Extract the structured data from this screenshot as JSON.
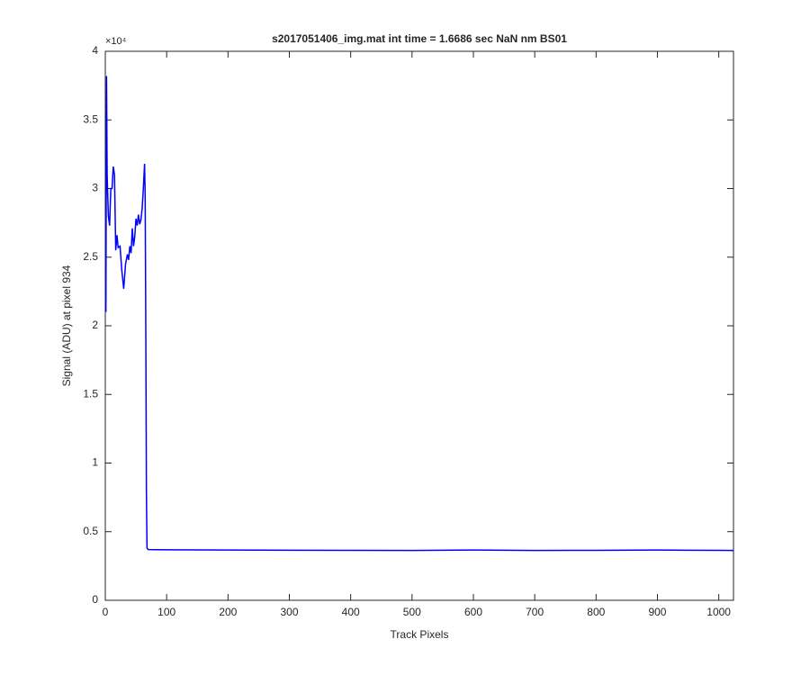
{
  "chart_data": {
    "type": "line",
    "title": "s2017051406_img.mat int time = 1.6686 sec  NaN nm BS01",
    "x_label": "Track Pixels",
    "y_label": "Signal (ADU) at pixel 934",
    "y_exponent_label": "×10⁴",
    "x": [
      1,
      2,
      3,
      5,
      7,
      9,
      11,
      13,
      15,
      17,
      19,
      21,
      24,
      27,
      30,
      33,
      36,
      38,
      40,
      42,
      44,
      46,
      48,
      50,
      52,
      54,
      56,
      58,
      60,
      62,
      64,
      65,
      66,
      67,
      68,
      70,
      100,
      200,
      300,
      400,
      500,
      600,
      700,
      800,
      900,
      1000,
      1024
    ],
    "series": [
      {
        "color": "#0000ff",
        "values": [
          21000,
          38200,
          31000,
          28000,
          27300,
          30000,
          30000,
          31600,
          31000,
          25500,
          26600,
          25700,
          25800,
          24000,
          22700,
          24500,
          25200,
          24800,
          25800,
          25300,
          27100,
          25800,
          26500,
          27800,
          27300,
          28100,
          27400,
          27700,
          28500,
          30000,
          31800,
          29500,
          20000,
          8000,
          3800,
          3700,
          3680,
          3660,
          3650,
          3640,
          3630,
          3660,
          3630,
          3640,
          3660,
          3640,
          3630
        ]
      }
    ],
    "xlim": [
      0,
      1024
    ],
    "ylim": [
      0,
      40000
    ],
    "xticks": [
      0,
      100,
      200,
      300,
      400,
      500,
      600,
      700,
      800,
      900,
      1000
    ],
    "yticks": [
      0,
      {
        "value": 5000,
        "label": "0.5"
      },
      {
        "value": 10000,
        "label": "1"
      },
      {
        "value": 15000,
        "label": "1.5"
      },
      {
        "value": 20000,
        "label": "2"
      },
      {
        "value": 25000,
        "label": "2.5"
      },
      {
        "value": 30000,
        "label": "3"
      },
      {
        "value": 35000,
        "label": "3.5"
      },
      {
        "value": 40000,
        "label": "4"
      }
    ],
    "grid": false
  }
}
